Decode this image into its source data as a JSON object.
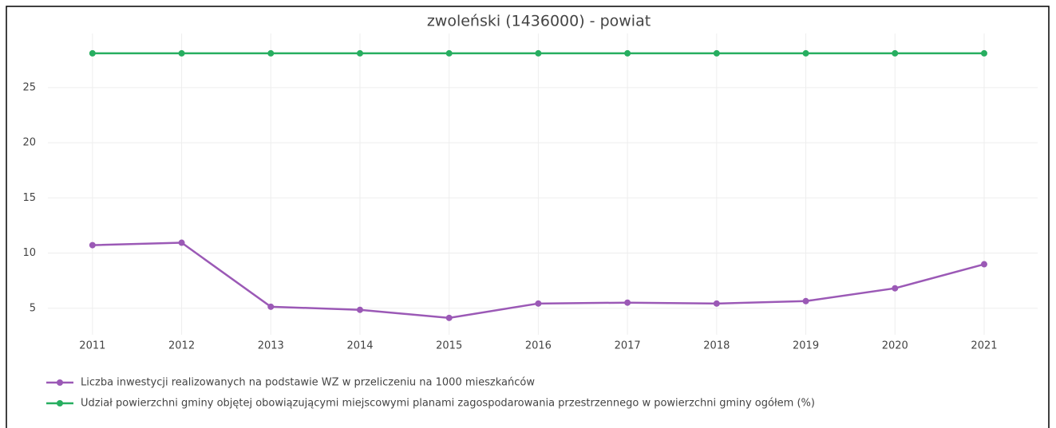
{
  "chart_data": {
    "type": "line",
    "title": "zwoleński (1436000) - powiat",
    "x": [
      2011,
      2012,
      2013,
      2014,
      2015,
      2016,
      2017,
      2018,
      2019,
      2020,
      2021
    ],
    "series": [
      {
        "name": "Liczba inwestycji realizowanych na podstawie WZ w przeliczeniu na 1000 mieszkańców",
        "color": "#9b59b6",
        "values": [
          10.72,
          10.94,
          5.14,
          4.86,
          4.13,
          5.43,
          5.51,
          5.43,
          5.65,
          6.81,
          8.99
        ]
      },
      {
        "name": "Udział powierzchni gminy objętej obowiązującymi miejscowymi planami zagospodarowania przestrzennego w powierzchni gminy ogółem (%)",
        "color": "#27ae60",
        "values": [
          28.1,
          28.1,
          28.1,
          28.1,
          28.1,
          28.1,
          28.1,
          28.1,
          28.1,
          28.1,
          28.1
        ]
      }
    ],
    "xlim": [
      2010.5,
      2021.6
    ],
    "xticks": [
      2011,
      2012,
      2013,
      2014,
      2015,
      2016,
      2017,
      2018,
      2019,
      2020,
      2021
    ],
    "ylim": [
      2.6,
      29.9
    ],
    "yticks": [
      5,
      10,
      15,
      20,
      25
    ],
    "grid": true,
    "legend": "bottom"
  }
}
